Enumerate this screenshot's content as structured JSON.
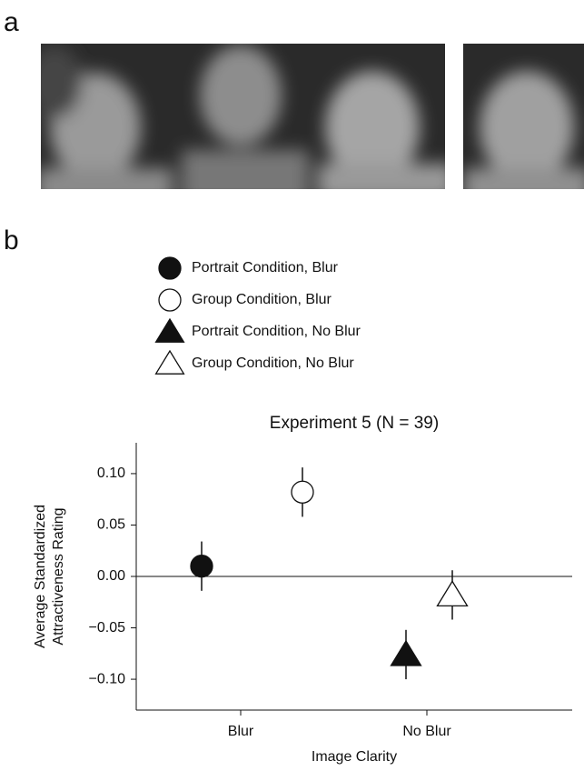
{
  "panel_a_label": "a",
  "panel_b_label": "b",
  "chart_data": {
    "type": "scatter",
    "title": "Experiment 5 (N = 39)",
    "xlabel": "Image Clarity",
    "ylabel": [
      "Average Standardized",
      "Attractiveness Rating"
    ],
    "categories": [
      "Blur",
      "No Blur"
    ],
    "ylim": [
      -0.13,
      0.13
    ],
    "yticks": [
      {
        "value": 0.1,
        "label": "0.10"
      },
      {
        "value": 0.05,
        "label": "0.05"
      },
      {
        "value": 0,
        "label": "0.00"
      },
      {
        "value": -0.05,
        "label": "−0.05"
      },
      {
        "value": -0.1,
        "label": "−0.10"
      }
    ],
    "zero_line": true,
    "series": [
      {
        "name": "Portrait Condition, Blur",
        "marker": "circle",
        "filled": true,
        "color": "#111111",
        "values": [
          0.01,
          null
        ],
        "errors": [
          0.024,
          null
        ]
      },
      {
        "name": "Group Condition, Blur",
        "marker": "circle",
        "filled": false,
        "color": "#111111",
        "values": [
          0.082,
          null
        ],
        "errors": [
          0.024,
          null
        ]
      },
      {
        "name": "Portrait Condition, No Blur",
        "marker": "triangle",
        "filled": true,
        "color": "#111111",
        "values": [
          null,
          -0.076
        ],
        "errors": [
          null,
          0.024
        ]
      },
      {
        "name": "Group Condition, No Blur",
        "marker": "triangle",
        "filled": false,
        "color": "#111111",
        "values": [
          null,
          -0.018
        ],
        "errors": [
          null,
          0.024
        ]
      }
    ]
  }
}
